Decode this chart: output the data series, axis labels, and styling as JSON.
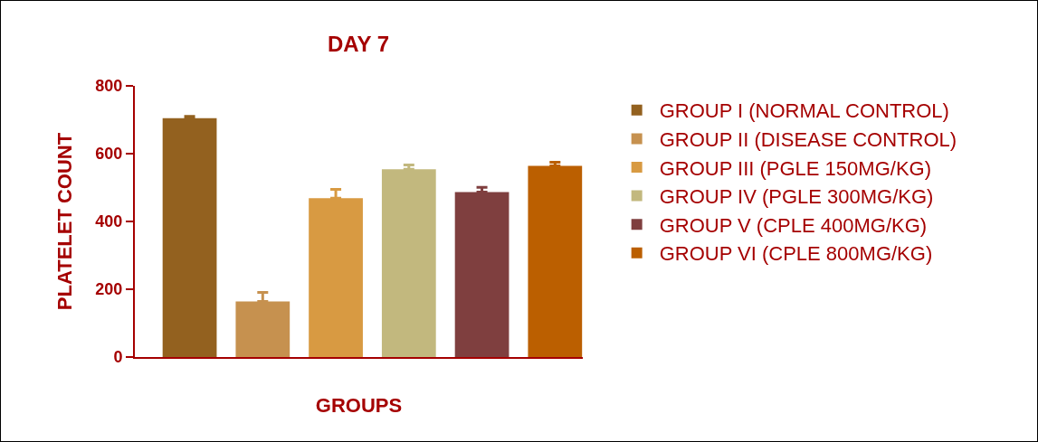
{
  "chart_data": {
    "type": "bar",
    "title": "DAY 7",
    "xlabel": "GROUPS",
    "ylabel": "PLATELET COUNT",
    "categories": [
      null,
      null,
      null,
      null,
      null,
      null
    ],
    "series": [
      {
        "name": "GROUP I (NORMAL CONTROL)",
        "color": "#93611f",
        "values": [
          705,
          null,
          null,
          null,
          null,
          null
        ],
        "errors": [
          [
            705,
            710
          ],
          null,
          null,
          null,
          null,
          null
        ]
      },
      {
        "name": "GROUP II (DISEASE CONTROL)",
        "color": "#c6914f",
        "values": [
          null,
          164,
          null,
          null,
          null,
          null
        ],
        "errors": [
          null,
          [
            164,
            191
          ],
          null,
          null,
          null,
          null
        ]
      },
      {
        "name": "GROUP III (PGLE 150MG/KG)",
        "color": "#d89a42",
        "values": [
          null,
          null,
          469,
          null,
          null,
          null
        ],
        "errors": [
          null,
          null,
          [
            469,
            495
          ],
          null,
          null,
          null
        ]
      },
      {
        "name": "GROUP IV (PGLE 300MG/KG)",
        "color": "#c2b87e",
        "values": [
          null,
          null,
          null,
          554,
          null,
          null
        ],
        "errors": [
          null,
          null,
          null,
          [
            554,
            567
          ],
          null,
          null
        ]
      },
      {
        "name": "GROUP V (CPLE 400MG/KG)",
        "color": "#7f3f3f",
        "values": [
          null,
          null,
          null,
          null,
          487,
          null
        ],
        "errors": [
          null,
          null,
          null,
          null,
          [
            487,
            501
          ],
          null
        ]
      },
      {
        "name": "GROUP VI (CPLE 800MG/KG)",
        "color": "#bb5f00",
        "values": [
          null,
          null,
          null,
          null,
          null,
          564
        ],
        "errors": [
          null,
          null,
          null,
          null,
          null,
          [
            564,
            575
          ]
        ]
      }
    ],
    "ylim": [
      0,
      800
    ],
    "yticks": [
      0,
      200,
      400,
      600,
      800
    ],
    "grid": false,
    "legend": "right"
  }
}
